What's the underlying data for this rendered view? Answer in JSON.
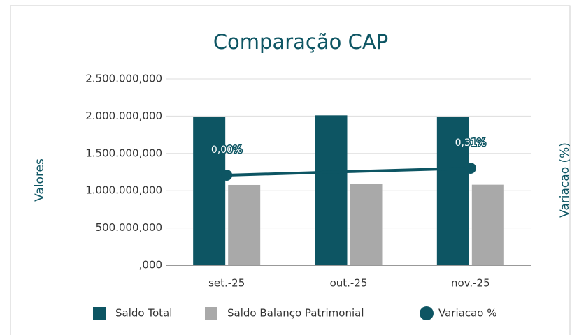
{
  "chart_data": {
    "type": "bar-line",
    "title": "Comparação CAP",
    "ylabel": "Valores",
    "y2label": "Variacao (%)",
    "categories": [
      "set.-25",
      "out.-25",
      "nov.-25"
    ],
    "series": [
      {
        "name": "Saldo Total",
        "type": "bar",
        "color": "#0d5563",
        "values": [
          1990000000,
          2010000000,
          1990000000
        ]
      },
      {
        "name": "Saldo Balanço Patrimonial",
        "type": "bar",
        "color": "#a9a9a9",
        "values": [
          1077000000,
          1095000000,
          1080000000
        ]
      },
      {
        "name": "Variacao %",
        "type": "line",
        "axis": "y2",
        "color": "#0d5563",
        "values": [
          0.0,
          0.16,
          0.31
        ],
        "value_labels": [
          "0,00%",
          null,
          "0,31%"
        ]
      }
    ],
    "ylim": [
      0,
      2500000000
    ],
    "yticks": [
      {
        "value": 0,
        "label": ",000"
      },
      {
        "value": 500000000,
        "label": "500.000,000"
      },
      {
        "value": 1000000000,
        "label": "1.000.000,000"
      },
      {
        "value": 1500000000,
        "label": "1.500.000,000"
      },
      {
        "value": 2000000000,
        "label": "2.000.000,000"
      },
      {
        "value": 2500000000,
        "label": "2.500.000,000"
      }
    ],
    "y2lim": [
      -4,
      4.28
    ],
    "grid": true,
    "legend": "bottom"
  }
}
